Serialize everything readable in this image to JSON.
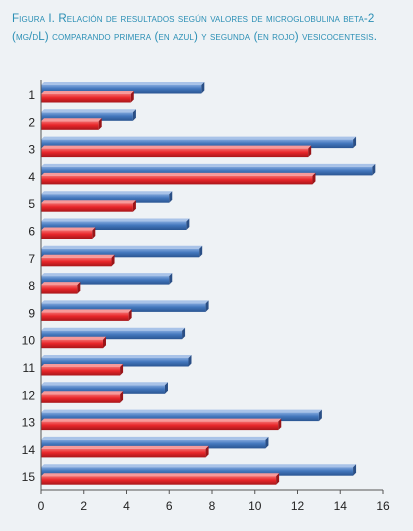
{
  "caption": {
    "label": "Figura I.",
    "text": "Relación de resultados según valores de microglobulina beta-2 (mg/dL) comparando primera (en azul) y segunda (en rojo) vesicocentesis."
  },
  "chart_data": {
    "type": "bar",
    "orientation": "horizontal",
    "categories": [
      "1",
      "2",
      "3",
      "4",
      "5",
      "6",
      "7",
      "8",
      "9",
      "10",
      "11",
      "12",
      "13",
      "14",
      "15"
    ],
    "series": [
      {
        "color": "#3f72b8",
        "values": [
          7.5,
          4.3,
          14.6,
          15.5,
          6.0,
          6.8,
          7.4,
          6.0,
          7.7,
          6.6,
          6.9,
          5.8,
          13.0,
          10.5,
          14.6
        ]
      },
      {
        "color": "#e8262a",
        "values": [
          4.2,
          2.7,
          12.5,
          12.7,
          4.3,
          2.4,
          3.3,
          1.7,
          4.1,
          2.9,
          3.7,
          3.7,
          11.1,
          7.7,
          11.0
        ]
      }
    ],
    "xlim": [
      0,
      16
    ],
    "xticks": [
      0,
      2,
      4,
      6,
      8,
      10,
      12,
      14,
      16
    ],
    "grid": false,
    "legend": "none"
  }
}
